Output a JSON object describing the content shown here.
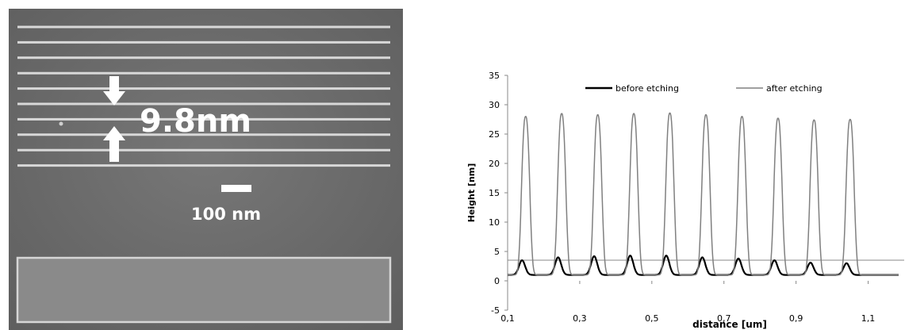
{
  "sem_image": {
    "measurement_label": "9.8nm",
    "scale_bar_label": "100 nm",
    "line_count": 10,
    "background_color": "#6e6e6e",
    "line_color": "#d8d8d8"
  },
  "chart_data": {
    "type": "line",
    "title": "",
    "xlabel": "distance [um]",
    "ylabel": "Height [nm]",
    "xlim": [
      0.1,
      1.2
    ],
    "ylim": [
      -5,
      35
    ],
    "xticks": [
      "0,1",
      "0,3",
      "0,5",
      "0,7",
      "0,9",
      "1,1"
    ],
    "yticks": [
      "-5",
      "0",
      "5",
      "10",
      "15",
      "20",
      "25",
      "30",
      "35"
    ],
    "legend_position": "top",
    "grid": false,
    "series": [
      {
        "name": "before etching",
        "color": "#000000",
        "baseline": 1,
        "peak_x": [
          0.14,
          0.24,
          0.34,
          0.44,
          0.54,
          0.64,
          0.74,
          0.84,
          0.94,
          1.04
        ],
        "peak_y": [
          3.5,
          4.0,
          4.2,
          4.3,
          4.3,
          4.0,
          3.8,
          3.5,
          3.1,
          3.0
        ]
      },
      {
        "name": "after etching",
        "color": "#808080",
        "baseline": 1,
        "peak_x": [
          0.15,
          0.25,
          0.35,
          0.45,
          0.55,
          0.65,
          0.75,
          0.85,
          0.95,
          1.05
        ],
        "peak_y": [
          28.0,
          28.5,
          28.3,
          28.5,
          28.6,
          28.3,
          28.0,
          27.7,
          27.4,
          27.5
        ]
      }
    ]
  }
}
